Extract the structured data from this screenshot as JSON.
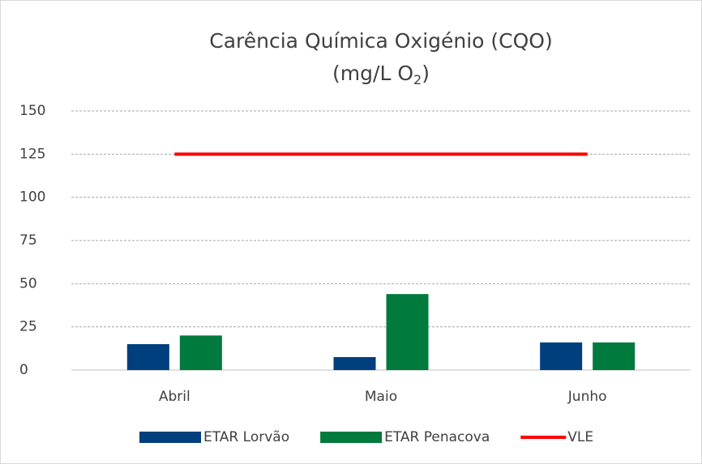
{
  "chart_data": {
    "type": "bar",
    "title": [
      "Carência Química Oxigénio (CQO)",
      "(mg/L O",
      "2",
      ")"
    ],
    "categories": [
      "Abril",
      "Maio",
      "Junho"
    ],
    "series": [
      {
        "name": "ETAR Lorvão",
        "color": "#003f7d",
        "values": [
          15,
          7.5,
          16
        ]
      },
      {
        "name": "ETAR Penacova",
        "color": "#007a3d",
        "values": [
          20,
          44,
          16
        ]
      },
      {
        "name": "VLE",
        "color": "#ff0000",
        "type": "line",
        "values": [
          125,
          125,
          125
        ]
      }
    ],
    "ylim": [
      0,
      150
    ],
    "yticks": [
      0,
      25,
      50,
      75,
      100,
      125,
      150
    ],
    "grid": true,
    "legend": "bottom"
  }
}
